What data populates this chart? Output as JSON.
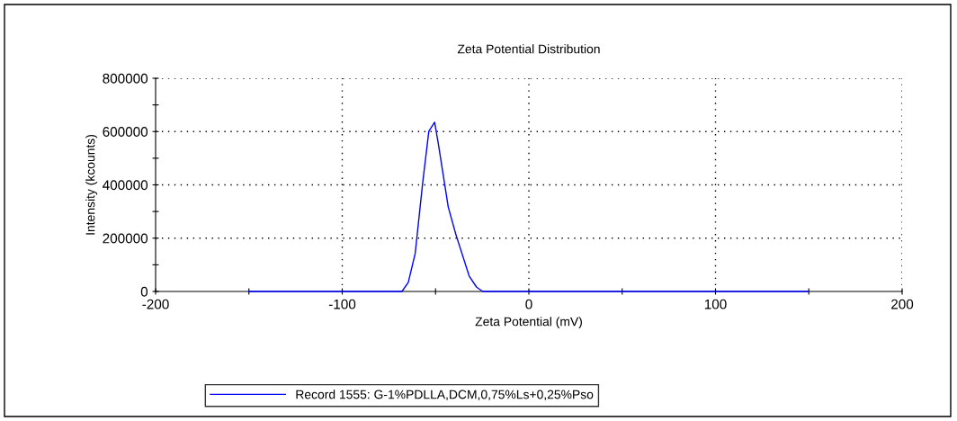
{
  "chart_data": {
    "type": "line",
    "title": "Zeta Potential Distribution",
    "xlabel": "Zeta Potential (mV)",
    "ylabel": "Intensity (kcounts)",
    "series": [
      {
        "name": "Record 1555: G-1%PDLLA,DCM,0,75%Ls+0,25%Pso",
        "color": "#0000ff",
        "x": [
          -150,
          -68,
          -64.6,
          -60.9,
          -56.9,
          -53.6,
          -50.5,
          -48.5,
          -43.2,
          -39.2,
          -32,
          -28,
          -24.7,
          150
        ],
        "values": [
          0,
          0,
          34000,
          143000,
          407000,
          601000,
          635000,
          554000,
          317000,
          216000,
          58000,
          16000,
          0,
          0
        ]
      }
    ],
    "xlim": [
      -200,
      200
    ],
    "ylim": [
      0,
      800000
    ],
    "xticks": [
      -200,
      {
        "value": -150,
        "label": null
      },
      -100,
      {
        "value": -50,
        "label": null
      },
      0,
      {
        "value": 50,
        "label": null
      },
      100,
      {
        "value": 150,
        "label": null
      },
      200
    ],
    "yticks": [
      0,
      {
        "value": 100000,
        "label": null
      },
      200000,
      {
        "value": 300000,
        "label": null
      },
      400000,
      {
        "value": 500000,
        "label": null
      },
      600000,
      {
        "value": 700000,
        "label": null
      },
      800000
    ],
    "grid": true,
    "legend": "bottom",
    "line_style": "solid",
    "marker": "none"
  }
}
